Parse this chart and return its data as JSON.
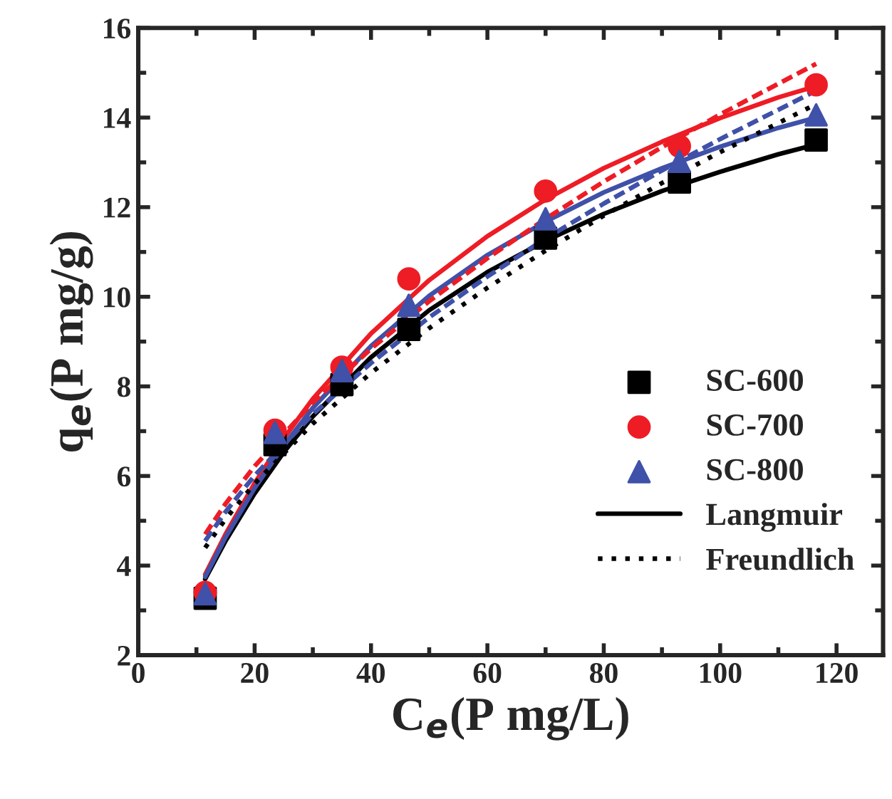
{
  "chart_data": {
    "type": "scatter",
    "xlabel": "C$_{e}$(P mg/L)",
    "ylabel": "q$_{e}$(P mg/g)",
    "xlim": [
      0,
      128
    ],
    "xticks": [
      0,
      20,
      40,
      60,
      80,
      100,
      120
    ],
    "ylim": [
      2,
      16
    ],
    "yticks": [
      2,
      4,
      6,
      8,
      10,
      12,
      14,
      16
    ],
    "grid": false,
    "legend": "bottom right",
    "series": [
      {
        "name": "SC-600",
        "marker": "square",
        "color": "#000000",
        "x": [
          11.5,
          23.5,
          35,
          46.5,
          70,
          93,
          116.5
        ],
        "values": [
          3.27,
          6.7,
          8.04,
          9.27,
          11.31,
          12.56,
          13.5
        ]
      },
      {
        "name": "SC-700",
        "marker": "circle",
        "color": "#ee1c25",
        "x": [
          11.5,
          23.5,
          35,
          46.5,
          70,
          93,
          116.5
        ],
        "values": [
          3.4,
          7.02,
          8.43,
          10.4,
          12.36,
          13.36,
          14.73
        ]
      },
      {
        "name": "SC-800",
        "marker": "triangle",
        "color": "#3f51a8",
        "x": [
          11.5,
          23.5,
          35,
          46.5,
          70,
          93,
          116.5
        ],
        "values": [
          3.37,
          6.97,
          8.35,
          9.81,
          11.74,
          13.02,
          14.06
        ]
      },
      {
        "name": "Langmuir",
        "type": "line",
        "line_style": "solid",
        "color": "#000000",
        "x": [
          11.5,
          15,
          20,
          25,
          30,
          40,
          50,
          60,
          70,
          80,
          90,
          100,
          110,
          116.5
        ],
        "values": [
          3.7,
          4.55,
          5.61,
          6.53,
          7.33,
          8.65,
          9.7,
          10.55,
          11.25,
          11.85,
          12.36,
          12.79,
          13.18,
          13.4
        ]
      },
      {
        "type": "line",
        "line_style": "solid",
        "color": "#ee1c25",
        "x": [
          11.5,
          15,
          20,
          25,
          30,
          40,
          50,
          60,
          70,
          80,
          90,
          100,
          110,
          116.5
        ],
        "values": [
          3.8,
          4.7,
          5.84,
          6.84,
          7.72,
          9.18,
          10.37,
          11.35,
          12.17,
          12.87,
          13.46,
          13.99,
          14.45,
          14.7
        ]
      },
      {
        "type": "line",
        "line_style": "solid",
        "color": "#3f51a8",
        "x": [
          11.5,
          15,
          20,
          25,
          30,
          40,
          50,
          60,
          70,
          80,
          90,
          100,
          110,
          116.5
        ],
        "values": [
          3.75,
          4.63,
          5.73,
          6.68,
          7.52,
          8.9,
          10.02,
          10.93,
          11.68,
          12.33,
          12.87,
          13.35,
          13.77,
          14.0
        ]
      },
      {
        "name": "Freundlich",
        "type": "line",
        "line_style": "dotted",
        "color": "#000000",
        "x": [
          11.5,
          15,
          20,
          30,
          40,
          50,
          60,
          70,
          80,
          90,
          100,
          116.5
        ],
        "values": [
          4.4,
          5.04,
          5.83,
          7.17,
          8.3,
          9.3,
          10.2,
          11.03,
          11.81,
          12.54,
          13.23,
          14.3
        ]
      },
      {
        "type": "line",
        "line_style": "dashed",
        "color": "#ee1c25",
        "x": [
          11.5,
          15,
          20,
          30,
          40,
          50,
          60,
          70,
          80,
          90,
          100,
          116.5
        ],
        "values": [
          4.7,
          5.38,
          6.22,
          7.64,
          8.84,
          9.9,
          10.86,
          11.74,
          12.57,
          13.34,
          14.07,
          15.2
        ]
      },
      {
        "type": "line",
        "line_style": "dashed",
        "color": "#3f51a8",
        "x": [
          11.5,
          15,
          20,
          30,
          40,
          50,
          60,
          70,
          80,
          90,
          100,
          116.5
        ],
        "values": [
          4.55,
          5.2,
          6.01,
          7.38,
          8.52,
          9.54,
          10.45,
          11.3,
          12.08,
          12.82,
          13.52,
          14.6
        ]
      }
    ]
  }
}
